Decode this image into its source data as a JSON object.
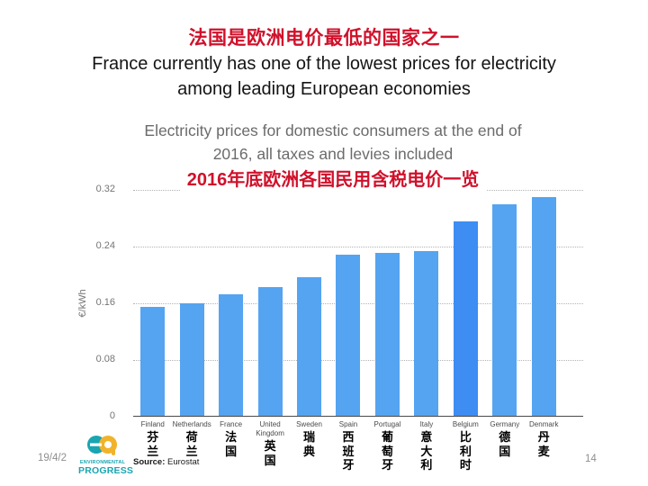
{
  "slide": {
    "title_zh": "法国是欧洲电价最低的国家之一",
    "title_en_lines": [
      "France currently has one of the lowest prices for electricity",
      "among leading European economies"
    ],
    "accent_red": "#d0112b",
    "date": "19/4/2",
    "page_number": "14",
    "logo": {
      "name": "Environmental Progress",
      "monogram": "ep",
      "line1": "ENVIRONMENTAL",
      "line2": "PROGRESS",
      "teal": "#19a5b1",
      "yellow": "#f0b32a"
    }
  },
  "chart_data": {
    "type": "bar",
    "title": "Electricity prices for domestic consumers at the end of 2016, all taxes and levies included",
    "title_lines": [
      "Electricity prices for domestic consumers at the end of",
      "2016, all taxes and levies included"
    ],
    "subtitle_zh": "2016年底欧洲各国民用含税电价一览",
    "xlabel": "",
    "ylabel": "€/kWh",
    "ylim": [
      0,
      0.32
    ],
    "yticks": [
      "0",
      "0.08",
      "0.16",
      "0.24",
      "0.32"
    ],
    "grid": "horizontal dotted",
    "legend": "none",
    "categories": [
      "Finland",
      "Netherlands",
      "France",
      "United Kingdom",
      "Sweden",
      "Spain",
      "Portugal",
      "Italy",
      "Belgium",
      "Germany",
      "Denmark"
    ],
    "categories_zh": [
      "芬兰",
      "荷兰",
      "法国",
      "英国",
      "瑞典",
      "西班牙",
      "葡萄牙",
      "意大利",
      "比利时",
      "德国",
      "丹麦"
    ],
    "values": [
      0.154,
      0.159,
      0.171,
      0.182,
      0.196,
      0.227,
      0.23,
      0.233,
      0.274,
      0.298,
      0.309
    ],
    "highlight_index": 8,
    "bar_color": "#55a4f1",
    "highlight_color": "#3d8df2",
    "source_label": "Source:",
    "source_value": "Eurostat"
  }
}
